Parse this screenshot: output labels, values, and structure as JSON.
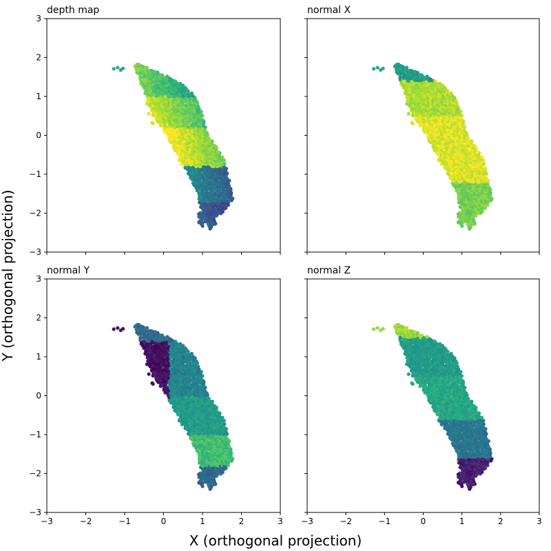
{
  "chart_data": {
    "type": "scatter",
    "xlabel": "X (orthogonal projection)",
    "ylabel": "Y (orthogonal projection)",
    "xlim": [
      -3,
      3
    ],
    "ylim": [
      -3,
      3
    ],
    "xticks": [
      -3,
      -2,
      -1,
      0,
      1,
      2,
      3
    ],
    "yticks": [
      -3,
      -2,
      -1,
      0,
      1,
      2,
      3
    ],
    "xtick_labels": [
      "−3",
      "−2",
      "−1",
      "0",
      "1",
      "2",
      "3"
    ],
    "ytick_labels": [
      "−3",
      "−2",
      "−1",
      "0",
      "1",
      "2",
      "3"
    ],
    "colormap": "viridis",
    "shared_axes": true,
    "grid": false,
    "shape_outline": [
      [
        -0.75,
        1.82
      ],
      [
        -0.55,
        1.83
      ],
      [
        -0.35,
        1.7
      ],
      [
        0.05,
        1.55
      ],
      [
        0.45,
        1.35
      ],
      [
        0.78,
        1.05
      ],
      [
        1.0,
        0.55
      ],
      [
        1.1,
        0.1
      ],
      [
        1.3,
        -0.2
      ],
      [
        1.55,
        -0.6
      ],
      [
        1.7,
        -1.2
      ],
      [
        1.78,
        -1.65
      ],
      [
        1.55,
        -1.95
      ],
      [
        1.3,
        -2.15
      ],
      [
        1.22,
        -2.45
      ],
      [
        1.05,
        -2.2
      ],
      [
        0.95,
        -1.85
      ],
      [
        0.85,
        -1.45
      ],
      [
        0.65,
        -1.0
      ],
      [
        0.4,
        -0.65
      ],
      [
        0.25,
        -0.3
      ],
      [
        0.05,
        0.05
      ],
      [
        -0.2,
        0.4
      ],
      [
        -0.4,
        0.8
      ],
      [
        -0.5,
        1.1
      ],
      [
        -0.6,
        1.4
      ],
      [
        -0.7,
        1.65
      ]
    ],
    "detached_points": [
      [
        -1.28,
        1.71
      ],
      [
        -1.18,
        1.74
      ],
      [
        -1.1,
        1.68
      ],
      [
        -1.04,
        1.72
      ]
    ],
    "panels": [
      {
        "title": "depth map",
        "color_by": "depth",
        "bands": [
          {
            "y_range": [
              1.0,
              1.85
            ],
            "value": 0.65
          },
          {
            "y_range": [
              0.2,
              1.0
            ],
            "value": 0.8
          },
          {
            "y_range": [
              -0.8,
              0.2
            ],
            "value": 0.92
          },
          {
            "y_range": [
              -1.7,
              -0.8
            ],
            "value": 0.45
          },
          {
            "y_range": [
              -2.45,
              -1.7
            ],
            "value": 0.3
          }
        ],
        "gradient_direction": "left-to-right decreasing",
        "detached_value": 0.62
      },
      {
        "title": "normal X",
        "color_by": "normal_x",
        "bands": [
          {
            "y_range": [
              1.4,
              1.85
            ],
            "value": 0.55
          },
          {
            "y_range": [
              0.5,
              1.4
            ],
            "value": 0.88
          },
          {
            "y_range": [
              -1.2,
              0.5
            ],
            "value": 0.95
          },
          {
            "y_range": [
              -2.45,
              -1.2
            ],
            "value": 0.8
          }
        ],
        "detached_value": 0.6
      },
      {
        "title": "normal Y",
        "color_by": "normal_y",
        "bands": [
          {
            "y_range": [
              1.4,
              1.85
            ],
            "value": 0.35
          },
          {
            "y_range": [
              0.0,
              1.4
            ],
            "value": 0.45
          },
          {
            "y_range": [
              -1.0,
              0.0
            ],
            "value": 0.55
          },
          {
            "y_range": [
              -1.8,
              -1.0
            ],
            "value": 0.7
          },
          {
            "y_range": [
              -2.45,
              -1.8
            ],
            "value": 0.35
          }
        ],
        "left_edge_value": 0.05,
        "detached_value": 0.05
      },
      {
        "title": "normal Z",
        "color_by": "normal_z",
        "bands": [
          {
            "y_range": [
              1.5,
              1.85
            ],
            "value": 0.85
          },
          {
            "y_range": [
              0.5,
              1.5
            ],
            "value": 0.55
          },
          {
            "y_range": [
              -0.6,
              0.5
            ],
            "value": 0.6
          },
          {
            "y_range": [
              -1.6,
              -0.6
            ],
            "value": 0.4
          },
          {
            "y_range": [
              -2.45,
              -1.6
            ],
            "value": 0.1
          }
        ],
        "detached_value": 0.85
      }
    ]
  }
}
